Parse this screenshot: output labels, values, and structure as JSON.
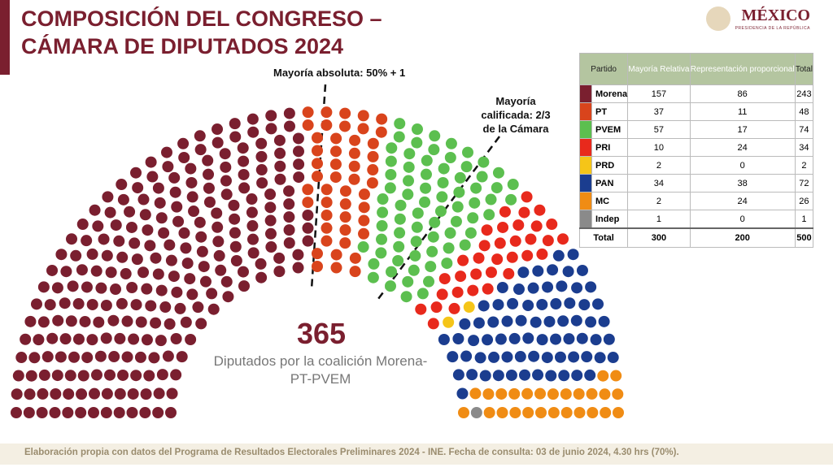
{
  "chart_data": {
    "type": "parliament",
    "title": "COMPOSICIÓN DEL CONGRESO – CÁMARA DE DIPUTADOS 2024",
    "columns": [
      "Partido",
      "Mayoría Relativa",
      "Representación proporcional",
      "Total"
    ],
    "series": [
      {
        "name": "Morena",
        "color": "#7a1f2f",
        "values": [
          157,
          86,
          243
        ]
      },
      {
        "name": "PT",
        "color": "#d9441c",
        "values": [
          37,
          11,
          48
        ]
      },
      {
        "name": "PVEM",
        "color": "#5cbf4f",
        "values": [
          57,
          17,
          74
        ]
      },
      {
        "name": "PRI",
        "color": "#e8291c",
        "values": [
          10,
          24,
          34
        ]
      },
      {
        "name": "PRD",
        "color": "#f5c518",
        "values": [
          2,
          0,
          2
        ]
      },
      {
        "name": "PAN",
        "color": "#1b3d8f",
        "values": [
          34,
          38,
          72
        ]
      },
      {
        "name": "MC",
        "color": "#f08c14",
        "values": [
          2,
          24,
          26
        ]
      },
      {
        "name": "Indep",
        "color": "#8a8a8a",
        "values": [
          1,
          0,
          1
        ]
      }
    ],
    "total_label": "Total",
    "totals": [
      300,
      200,
      500
    ],
    "annotations": [
      "Mayoría absoluta: 50% + 1",
      "Mayoría calificada: 2/3 de la Cámara"
    ],
    "coalition": {
      "value": 365,
      "label": "Diputados por la coalición Morena-PT-PVEM"
    },
    "source": "Elaboración propia con datos del Programa de Resultados Electorales Preliminares 2024 - INE. Fecha de consulta: 03 de junio 2024, 4.30 hrs (70%).",
    "logo": {
      "title": "MÉXICO",
      "subtitle": "PRESIDENCIA DE LA REPÚBLICA"
    }
  }
}
